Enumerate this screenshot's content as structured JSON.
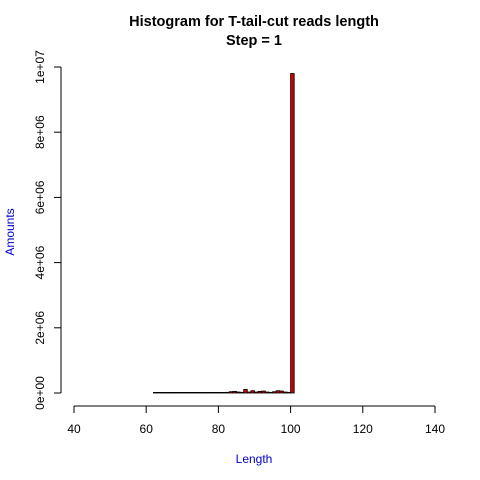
{
  "chart_data": {
    "type": "bar",
    "title": "Histogram for T-tail-cut reads length",
    "subtitle": "Step =  1",
    "xlabel": "Length",
    "ylabel": "Amounts",
    "xlim": [
      40,
      140
    ],
    "ylim": [
      0,
      10000000
    ],
    "x_ticks": [
      40,
      60,
      80,
      100,
      120,
      140
    ],
    "x_tick_labels": [
      "40",
      "60",
      "80",
      "100",
      "120",
      "140"
    ],
    "y_ticks": [
      0,
      2000000,
      4000000,
      6000000,
      8000000,
      10000000
    ],
    "y_tick_labels": [
      "0e+00",
      "2e+06",
      "4e+06",
      "6e+06",
      "8e+06",
      "1e+07"
    ],
    "grid": false,
    "bin_width": 1,
    "x": [
      62,
      63,
      64,
      65,
      66,
      67,
      68,
      69,
      70,
      71,
      72,
      73,
      74,
      75,
      76,
      77,
      78,
      79,
      80,
      81,
      82,
      83,
      84,
      85,
      86,
      87,
      88,
      89,
      90,
      91,
      92,
      93,
      94,
      95,
      96,
      97,
      98,
      99,
      100
    ],
    "values": [
      5000,
      5000,
      5000,
      5000,
      5000,
      5000,
      5000,
      5000,
      5000,
      5000,
      5000,
      5000,
      5000,
      5000,
      5000,
      5000,
      5000,
      10000,
      15000,
      10000,
      20000,
      40000,
      50000,
      30000,
      20000,
      110000,
      30000,
      70000,
      30000,
      50000,
      60000,
      30000,
      20000,
      40000,
      70000,
      60000,
      30000,
      20000,
      9800000
    ],
    "colors": {
      "bar_fill": "#cc0000",
      "bar_stroke": "#000000",
      "axis_label": "#0000cc",
      "title": "#000000"
    }
  }
}
